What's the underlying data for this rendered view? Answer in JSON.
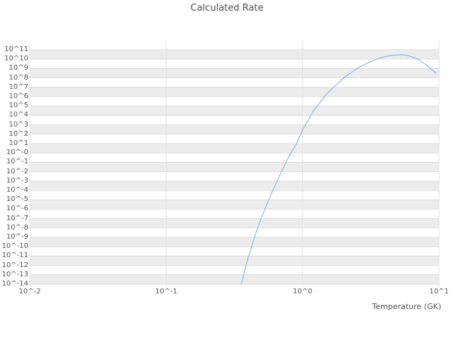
{
  "title": "Calculated Rate",
  "x_axis": {
    "label": "Temperature (GK)",
    "ticks": [
      {
        "exp": -2,
        "label": "10^-2"
      },
      {
        "exp": -1,
        "label": "10^-1"
      },
      {
        "exp": 0,
        "label": "10^0"
      },
      {
        "exp": 1,
        "label": "10^1"
      }
    ]
  },
  "y_axis": {
    "label": "",
    "ticks": [
      {
        "exp": 11,
        "label": "10^11"
      },
      {
        "exp": 10,
        "label": "10^10"
      },
      {
        "exp": 9,
        "label": "10^9"
      },
      {
        "exp": 8,
        "label": "10^8"
      },
      {
        "exp": 7,
        "label": "10^7"
      },
      {
        "exp": 6,
        "label": "10^6"
      },
      {
        "exp": 5,
        "label": "10^5"
      },
      {
        "exp": 4,
        "label": "10^4"
      },
      {
        "exp": 3,
        "label": "10^3"
      },
      {
        "exp": 2,
        "label": "10^2"
      },
      {
        "exp": 1,
        "label": "10^1"
      },
      {
        "exp": 0,
        "label": "10^-0"
      },
      {
        "exp": -1,
        "label": "10^-1"
      },
      {
        "exp": -2,
        "label": "10^-2"
      },
      {
        "exp": -3,
        "label": "10^-3"
      },
      {
        "exp": -4,
        "label": "10^-4"
      },
      {
        "exp": -5,
        "label": "10^-5"
      },
      {
        "exp": -6,
        "label": "10^-6"
      },
      {
        "exp": -7,
        "label": "10^-7"
      },
      {
        "exp": -8,
        "label": "10^-8"
      },
      {
        "exp": -9,
        "label": "10^-9"
      },
      {
        "exp": -10,
        "label": "10^-10"
      },
      {
        "exp": -11,
        "label": "10^-11"
      },
      {
        "exp": -12,
        "label": "10^-12"
      },
      {
        "exp": -13,
        "label": "10^-13"
      },
      {
        "exp": -14,
        "label": "10^-14"
      }
    ]
  },
  "colors": {
    "line": "#7cb5ec",
    "band": "#ececec",
    "grid_h": "#dedede",
    "grid_v": "#e4e4e4",
    "tick_text": "#545454",
    "title_text": "#4d4d4d"
  },
  "chart_data": {
    "type": "line",
    "title": "Calculated Rate",
    "xlabel": "Temperature (GK)",
    "ylabel": "",
    "xscale": "log",
    "yscale": "log",
    "xlim": [
      0.01,
      10
    ],
    "ylim": [
      1e-14,
      100000000000.0
    ],
    "grid": true,
    "legend": "none",
    "series": [
      {
        "name": "Calculated Rate",
        "points": [
          [
            0.355,
            1e-14
          ],
          [
            0.38,
            5e-13
          ],
          [
            0.4,
            8e-12
          ],
          [
            0.43,
            2.5e-10
          ],
          [
            0.46,
            5e-09
          ],
          [
            0.5,
            1.3e-07
          ],
          [
            0.55,
            4e-06
          ],
          [
            0.6,
            8e-05
          ],
          [
            0.65,
            0.001
          ],
          [
            0.7,
            0.01
          ],
          [
            0.75,
            0.08
          ],
          [
            0.8,
            0.5
          ],
          [
            0.9,
            10.0
          ],
          [
            1.0,
            300.0
          ],
          [
            1.2,
            30000.0
          ],
          [
            1.5,
            2000000.0
          ],
          [
            2.0,
            100000000.0
          ],
          [
            2.5,
            1000000000.0
          ],
          [
            3.0,
            4000000000.0
          ],
          [
            3.5,
            10000000000.0
          ],
          [
            4.0,
            18000000000.0
          ],
          [
            4.5,
            25000000000.0
          ],
          [
            5.0,
            28000000000.0
          ],
          [
            5.5,
            28000000000.0
          ],
          [
            6.0,
            22000000000.0
          ],
          [
            7.0,
            10000000000.0
          ],
          [
            8.0,
            2500000000.0
          ],
          [
            9.0,
            600000000.0
          ],
          [
            9.5,
            300000000.0
          ]
        ]
      }
    ]
  }
}
